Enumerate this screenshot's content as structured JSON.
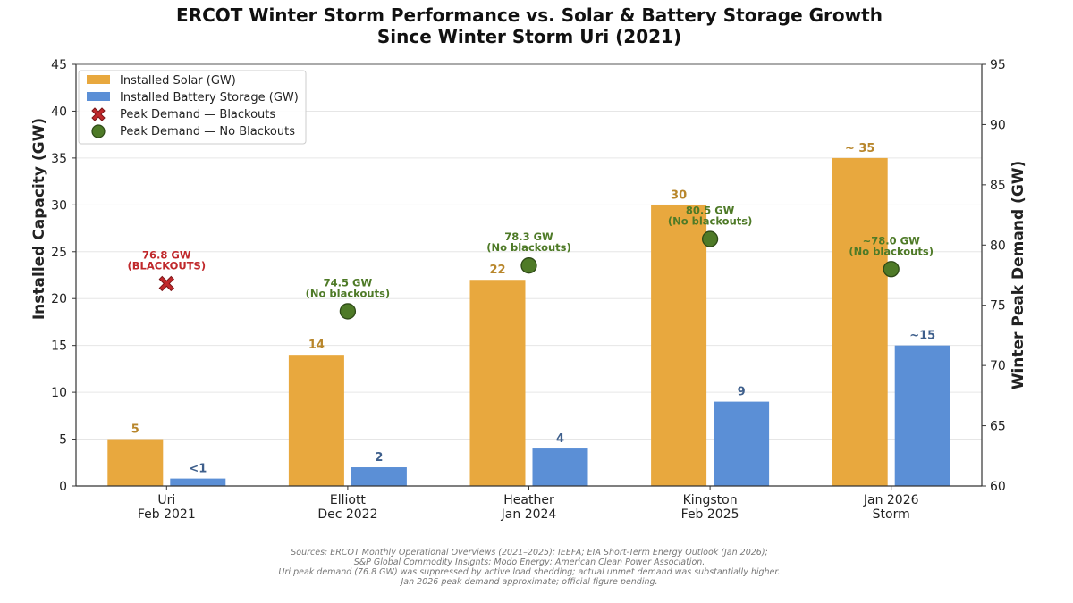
{
  "chart_data": {
    "type": "bar",
    "title": [
      "ERCOT Winter Storm Performance vs. Solar & Battery Storage Growth",
      "Since Winter Storm Uri (2021)"
    ],
    "categories": [
      [
        "Uri",
        "Feb 2021"
      ],
      [
        "Elliott",
        "Dec 2022"
      ],
      [
        "Heather",
        "Jan 2024"
      ],
      [
        "Kingston",
        "Feb 2025"
      ],
      [
        "Jan 2026",
        "Storm"
      ]
    ],
    "ylabel": "Installed Capacity (GW)",
    "y2label": "Winter Peak Demand (GW)",
    "ylim": [
      0,
      45
    ],
    "y2lim": [
      60,
      95
    ],
    "yticks": [
      0,
      5,
      10,
      15,
      20,
      25,
      30,
      35,
      40,
      45
    ],
    "y2ticks": [
      60,
      65,
      70,
      75,
      80,
      85,
      90,
      95
    ],
    "grid": true,
    "legend_position": "top-left",
    "series": [
      {
        "name": "Installed Solar (GW)",
        "kind": "bar",
        "color": "#E8A83E",
        "label_color": "#B8862B",
        "values": [
          5,
          14,
          22,
          30,
          35
        ],
        "labels": [
          "5",
          "14",
          "22",
          "30",
          "~ 35"
        ]
      },
      {
        "name": "Installed Battery Storage (GW)",
        "kind": "bar",
        "color": "#5B8FD6",
        "label_color": "#3E5F8C",
        "values": [
          0.8,
          2,
          4,
          9,
          15
        ],
        "labels": [
          "<1",
          "2",
          "4",
          "9",
          "~15"
        ]
      }
    ],
    "peak_demand": {
      "legend_blackouts": "Peak Demand — Blackouts",
      "legend_no_blackouts": "Peak Demand — No Blackouts",
      "blackout_color": "#C0282B",
      "no_blackout_color": "#4E7A27",
      "points": [
        {
          "value": 76.8,
          "blackouts": true,
          "label": [
            "76.8 GW",
            "(BLACKOUTS)"
          ]
        },
        {
          "value": 74.5,
          "blackouts": false,
          "label": [
            "74.5 GW",
            "(No blackouts)"
          ]
        },
        {
          "value": 78.3,
          "blackouts": false,
          "label": [
            "78.3 GW",
            "(No blackouts)"
          ]
        },
        {
          "value": 80.5,
          "blackouts": false,
          "label": [
            "80.5 GW",
            "(No blackouts)"
          ]
        },
        {
          "value": 78.0,
          "blackouts": false,
          "label": [
            "~78.0 GW",
            "(No blackouts)"
          ]
        }
      ]
    },
    "sources": [
      "Sources: ERCOT Monthly Operational Overviews (2021–2025); IEEFA; EIA Short-Term Energy Outlook (Jan 2026);",
      "S&P Global Commodity Insights; Modo Energy; American Clean Power Association.",
      "Uri peak demand (76.8 GW) was suppressed by active load shedding; actual unmet demand was substantially higher.",
      "Jan 2026 peak demand approximate; official figure pending."
    ]
  }
}
